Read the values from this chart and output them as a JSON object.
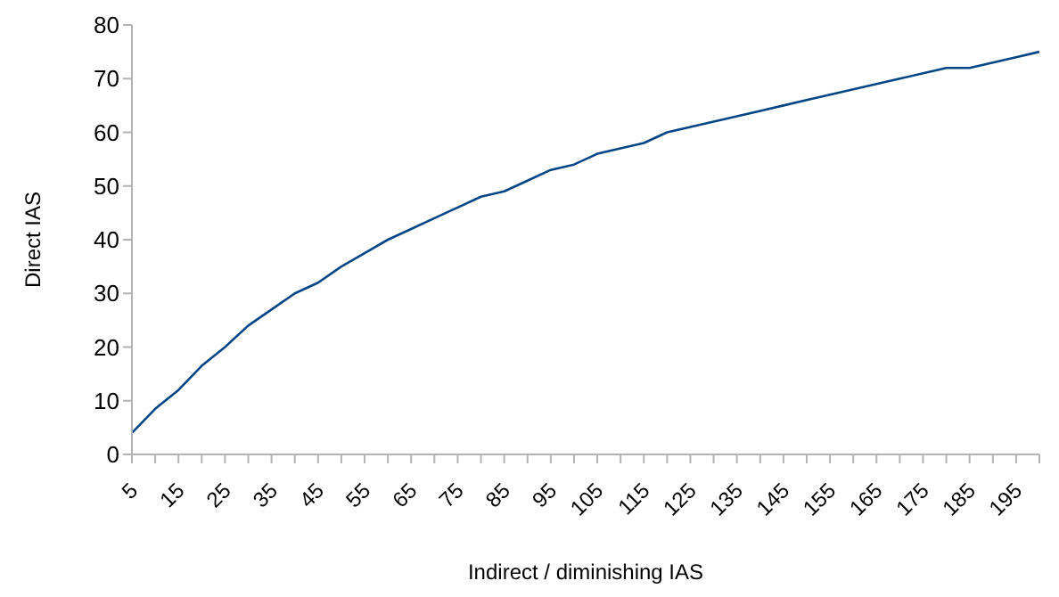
{
  "chart_data": {
    "type": "line",
    "xlabel": "Indirect / diminishing IAS",
    "ylabel": "Direct IAS",
    "categories": [
      "5",
      null,
      "15",
      null,
      "25",
      null,
      "35",
      null,
      "45",
      null,
      "55",
      null,
      "65",
      null,
      "75",
      null,
      "85",
      null,
      "95",
      null,
      "105",
      null,
      "115",
      null,
      "125",
      null,
      "135",
      null,
      "145",
      null,
      "155",
      null,
      "165",
      null,
      "175",
      null,
      "185",
      null,
      "195",
      null
    ],
    "series": [
      {
        "color": "#004586",
        "values": [
          4,
          8.5,
          12,
          16.5,
          20,
          24,
          27,
          30,
          32,
          35,
          37.5,
          40,
          42,
          44,
          46,
          48,
          49,
          51,
          53,
          54,
          56,
          57,
          58,
          60,
          61,
          62,
          63,
          64,
          65,
          66,
          67,
          68,
          69,
          70,
          71,
          72,
          72,
          73,
          74,
          75
        ]
      }
    ],
    "ylim": [
      0,
      80
    ],
    "yticks": [
      0,
      10,
      20,
      30,
      40,
      50,
      60,
      70,
      80
    ],
    "grid": false,
    "legend": false,
    "marker": "none",
    "line_style": "solid"
  }
}
